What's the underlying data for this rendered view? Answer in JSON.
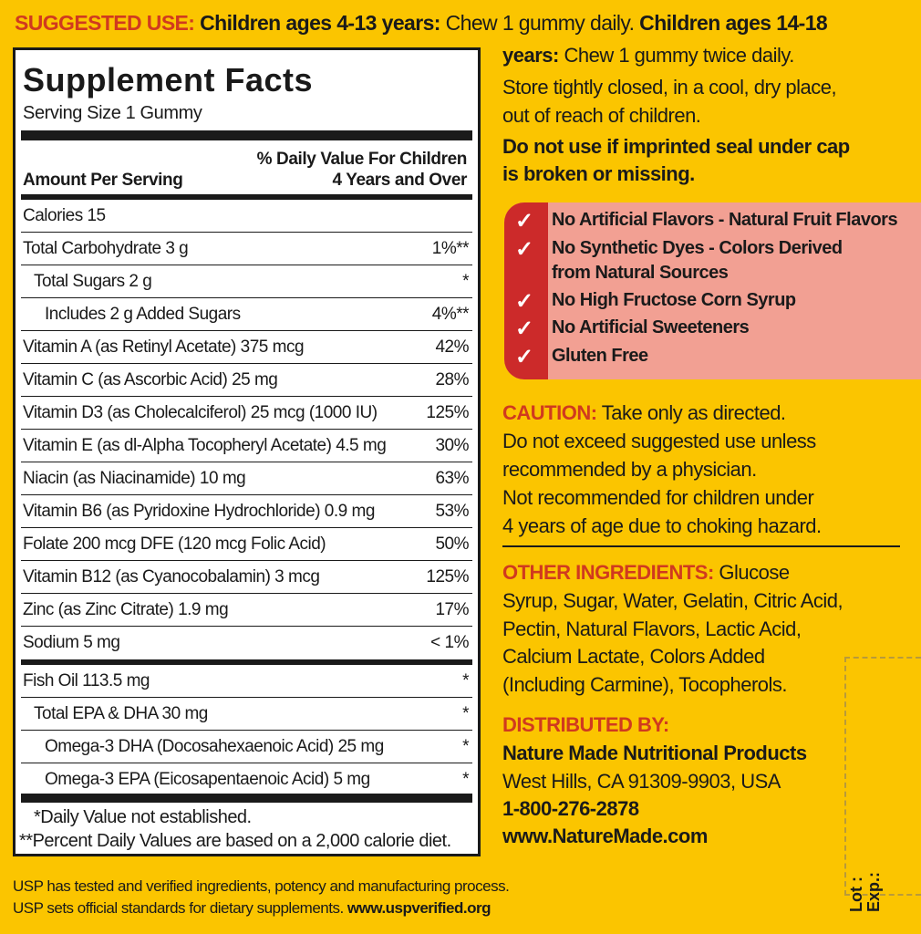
{
  "suggested_use": {
    "label": "SUGGESTED USE:",
    "line1_bold": "Children ages 4-13 years:",
    "line1_text": " Chew 1 gummy daily.",
    "line1_bold2": " Children ages 14-18",
    "line2_bold": "years:",
    "line2_text": " Chew 1 gummy twice daily.",
    "store1": "Store tightly closed, in a cool, dry place,",
    "store2": "out of reach of children.",
    "warn1": "Do not use if imprinted seal under cap",
    "warn2": "is broken or missing."
  },
  "facts": {
    "title": "Supplement Facts",
    "serving": "Serving Size 1 Gummy",
    "dv_header1": "% Daily Value For Children",
    "dv_header2": "4 Years and Over",
    "amount_header": "Amount Per Serving",
    "rows": [
      {
        "name": "Calories 15",
        "dv": ""
      },
      {
        "name": "Total Carbohydrate  3 g",
        "dv": "1%**"
      },
      {
        "name": "Total Sugars  2 g",
        "dv": "*"
      },
      {
        "name": "Includes  2 g Added Sugars",
        "dv": "4%**"
      },
      {
        "name": "Vitamin A (as Retinyl Acetate)  375 mcg",
        "dv": "42%"
      },
      {
        "name": "Vitamin C (as Ascorbic Acid)  25 mg",
        "dv": "28%"
      },
      {
        "name": "Vitamin D3 (as Cholecalciferol)  25 mcg (1000 IU)",
        "dv": "125%"
      },
      {
        "name": "Vitamin E (as dl-Alpha Tocopheryl Acetate)  4.5 mg",
        "dv": "30%"
      },
      {
        "name": "Niacin (as Niacinamide)  10 mg",
        "dv": "63%"
      },
      {
        "name": "Vitamin B6 (as Pyridoxine Hydrochloride)  0.9 mg",
        "dv": "53%"
      },
      {
        "name": "Folate 200 mcg DFE  (120 mcg Folic Acid)",
        "dv": "50%"
      },
      {
        "name": "Vitamin B12 (as Cyanocobalamin)  3 mcg",
        "dv": "125%"
      },
      {
        "name": "Zinc (as Zinc Citrate)  1.9 mg",
        "dv": "17%"
      },
      {
        "name": "Sodium  5 mg",
        "dv": "< 1%"
      },
      {
        "name": "Fish Oil  113.5 mg",
        "dv": "*"
      },
      {
        "name": "Total EPA & DHA  30 mg",
        "dv": "*"
      },
      {
        "name": "Omega-3 DHA (Docosahexaenoic Acid)  25 mg",
        "dv": "*"
      },
      {
        "name": "Omega-3 EPA (Eicosapentaenoic Acid)  5 mg",
        "dv": "*"
      }
    ],
    "foot1": "*Daily Value not established.",
    "foot2": "**Percent Daily Values are based on a 2,000 calorie diet."
  },
  "claims": [
    "No Artificial Flavors - Natural Fruit Flavors",
    "No Synthetic Dyes - Colors Derived",
    "from Natural Sources",
    "No High Fructose Corn Syrup",
    "No Artificial Sweeteners",
    "Gluten Free"
  ],
  "check_icon": "checkmark-icon",
  "caution": {
    "label": "CAUTION:",
    "l1": " Take only as directed.",
    "l2": "Do not exceed suggested use unless",
    "l3": "recommended by a physician.",
    "l4": "Not recommended for children under",
    "l5": "4 years of age due to choking hazard."
  },
  "ingredients": {
    "label": "OTHER INGREDIENTS:",
    "l1": " Glucose",
    "l2": "Syrup, Sugar, Water, Gelatin, Citric Acid,",
    "l3": "Pectin, Natural Flavors, Lactic Acid,",
    "l4": "Calcium Lactate, Colors Added",
    "l5": "(Including Carmine), Tocopherols."
  },
  "distributor": {
    "label": "DISTRIBUTED BY:",
    "name": "Nature Made Nutritional Products",
    "address": "West Hills, CA 91309-9903, USA",
    "phone": "1-800-276-2878",
    "web": "www.NatureMade.com"
  },
  "usp": {
    "l1": "USP has tested and verified ingredients, potency and manufacturing process.",
    "l2": "USP sets official standards for dietary supplements. ",
    "web": "www.uspverified.org"
  },
  "lot": {
    "lot": "Lot :",
    "exp": "Exp.:"
  },
  "colors": {
    "background": "#fbc500",
    "accent_red": "#d03a1f",
    "claims_bg": "#f2a093",
    "claims_stripe": "#cc2a2a"
  }
}
